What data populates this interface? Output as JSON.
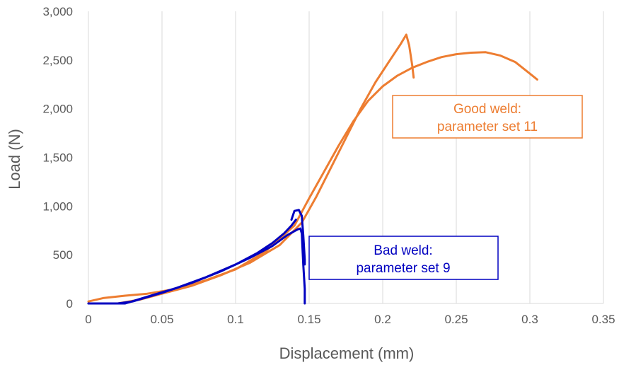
{
  "chart_data": {
    "type": "line",
    "title": "",
    "xlabel": "Displacement (mm)",
    "ylabel": "Load (N)",
    "xlim": [
      0,
      0.35
    ],
    "ylim": [
      0,
      3000
    ],
    "xticks": [
      0,
      0.05,
      0.1,
      0.15,
      0.2,
      0.25,
      0.3,
      0.35
    ],
    "xtick_labels": [
      "0",
      "0.05",
      "0.1",
      "0.15",
      "0.2",
      "0.25",
      "0.3",
      "0.35"
    ],
    "yticks": [
      0,
      500,
      1000,
      1500,
      2000,
      2500,
      3000
    ],
    "ytick_labels": [
      "0",
      "500",
      "1,000",
      "1,500",
      "2,000",
      "2,500",
      "3,000"
    ],
    "grid": "vertical",
    "legend": "none",
    "colors": {
      "good_weld": "#ed7d31",
      "bad_weld": "#0000c0",
      "grid": "#d9d9d9",
      "axis_text": "#595959"
    },
    "annotations": [
      {
        "id": "good",
        "lines": [
          "Good weld:",
          "parameter set 11"
        ],
        "color": "#ed7d31"
      },
      {
        "id": "bad",
        "lines": [
          "Bad weld:",
          "parameter set 9"
        ],
        "color": "#0000c0"
      }
    ],
    "series": [
      {
        "group": "good",
        "color": "#ed7d31",
        "points": [
          [
            0,
            20
          ],
          [
            0.01,
            55
          ],
          [
            0.025,
            80
          ],
          [
            0.04,
            100
          ],
          [
            0.06,
            150
          ],
          [
            0.08,
            240
          ],
          [
            0.1,
            350
          ],
          [
            0.12,
            530
          ],
          [
            0.14,
            800
          ],
          [
            0.15,
            1080
          ],
          [
            0.16,
            1350
          ],
          [
            0.17,
            1620
          ],
          [
            0.18,
            1870
          ],
          [
            0.19,
            2080
          ],
          [
            0.2,
            2230
          ],
          [
            0.21,
            2340
          ],
          [
            0.22,
            2420
          ],
          [
            0.23,
            2480
          ],
          [
            0.24,
            2530
          ],
          [
            0.25,
            2560
          ],
          [
            0.26,
            2575
          ],
          [
            0.27,
            2580
          ],
          [
            0.28,
            2545
          ],
          [
            0.29,
            2480
          ],
          [
            0.3,
            2360
          ],
          [
            0.305,
            2300
          ]
        ]
      },
      {
        "group": "good",
        "color": "#ed7d31",
        "points": [
          [
            0,
            0
          ],
          [
            0.02,
            0
          ],
          [
            0.035,
            40
          ],
          [
            0.05,
            100
          ],
          [
            0.07,
            180
          ],
          [
            0.09,
            290
          ],
          [
            0.11,
            420
          ],
          [
            0.13,
            600
          ],
          [
            0.145,
            830
          ],
          [
            0.155,
            1100
          ],
          [
            0.165,
            1400
          ],
          [
            0.175,
            1700
          ],
          [
            0.185,
            2000
          ],
          [
            0.195,
            2270
          ],
          [
            0.205,
            2500
          ],
          [
            0.212,
            2660
          ],
          [
            0.216,
            2760
          ],
          [
            0.218,
            2650
          ],
          [
            0.22,
            2450
          ],
          [
            0.221,
            2320
          ]
        ]
      },
      {
        "group": "bad",
        "color": "#0000c0",
        "points": [
          [
            0,
            0
          ],
          [
            0.02,
            0
          ],
          [
            0.03,
            20
          ],
          [
            0.05,
            110
          ],
          [
            0.07,
            210
          ],
          [
            0.09,
            330
          ],
          [
            0.11,
            470
          ],
          [
            0.125,
            590
          ],
          [
            0.135,
            700
          ],
          [
            0.142,
            760
          ],
          [
            0.144,
            770
          ],
          [
            0.145,
            720
          ],
          [
            0.146,
            400
          ],
          [
            0.147,
            150
          ],
          [
            0.147,
            0
          ]
        ]
      },
      {
        "group": "bad",
        "color": "#0000c0",
        "points": [
          [
            0,
            0
          ],
          [
            0.025,
            0
          ],
          [
            0.04,
            70
          ],
          [
            0.06,
            160
          ],
          [
            0.08,
            270
          ],
          [
            0.1,
            400
          ],
          [
            0.115,
            520
          ],
          [
            0.125,
            620
          ],
          [
            0.133,
            720
          ],
          [
            0.138,
            800
          ],
          [
            0.141,
            860
          ]
        ]
      },
      {
        "group": "bad",
        "color": "#0000c0",
        "points": [
          [
            0.138,
            860
          ],
          [
            0.14,
            950
          ],
          [
            0.143,
            960
          ],
          [
            0.145,
            900
          ],
          [
            0.146,
            700
          ],
          [
            0.147,
            450
          ],
          [
            0.147,
            400
          ]
        ]
      }
    ]
  }
}
